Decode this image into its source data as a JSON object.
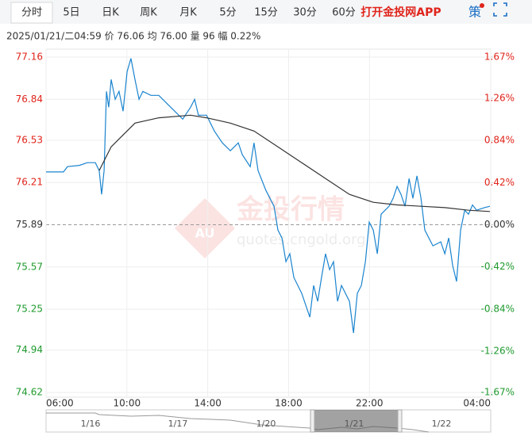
{
  "tabs": [
    "分时",
    "5日",
    "日K",
    "周K",
    "月K",
    "5分",
    "15分",
    "30分",
    "60分"
  ],
  "promo": "打开金投网APP",
  "strategy": "策",
  "info": "2025/01/21/二04:59  价 76.06  均 76.00  量 96  幅 0.22%",
  "watermark": {
    "title": "金投行情",
    "url": "quotes.cngold.org",
    "logo": "AU"
  },
  "navigator": {
    "labels": [
      "1/16",
      "1/17",
      "1/20",
      "1/21",
      "1/22"
    ]
  },
  "chart_data": {
    "type": "line",
    "grid": true,
    "baseline": 75.89,
    "xlim": [
      6,
      28
    ],
    "xticks": [
      {
        "value": 6,
        "label": "06:00"
      },
      {
        "value": 10,
        "label": "10:00"
      },
      {
        "value": 14,
        "label": "14:00"
      },
      {
        "value": 18,
        "label": "18:00"
      },
      {
        "value": 22,
        "label": "22:00"
      },
      {
        "value": 28,
        "label": "04:00"
      }
    ],
    "ylim": [
      74.62,
      77.16
    ],
    "yticks": [
      77.16,
      76.84,
      76.53,
      76.21,
      75.89,
      75.57,
      75.25,
      74.94,
      74.62
    ],
    "y2lim": [
      -1.67,
      1.67
    ],
    "y2ticks": [
      {
        "value": 1.67,
        "label": "1.67%"
      },
      {
        "value": 1.26,
        "label": "1.26%"
      },
      {
        "value": 0.84,
        "label": "0.84%"
      },
      {
        "value": 0.42,
        "label": "0.42%"
      },
      {
        "value": 0,
        "label": "0.00%"
      },
      {
        "value": -0.42,
        "label": "-0.42%"
      },
      {
        "value": -0.84,
        "label": "-0.84%"
      },
      {
        "value": -1.26,
        "label": "-1.26%"
      },
      {
        "value": -1.67,
        "label": "-1.67%"
      }
    ],
    "series": [
      {
        "color": "#1a84cf",
        "x": [
          6.0,
          6.86,
          7.06,
          7.65,
          8.04,
          8.44,
          8.63,
          8.75,
          8.87,
          8.99,
          9.1,
          9.22,
          9.42,
          9.61,
          9.81,
          10.01,
          10.2,
          10.4,
          10.6,
          10.79,
          11.19,
          11.58,
          11.97,
          12.37,
          12.76,
          13.15,
          13.35,
          13.54,
          13.94,
          14.33,
          14.72,
          15.12,
          15.51,
          15.71,
          16.1,
          16.29,
          16.49,
          16.88,
          17.28,
          17.47,
          17.67,
          17.87,
          18.06,
          18.26,
          18.65,
          19.05,
          19.24,
          19.44,
          19.63,
          19.83,
          20.03,
          20.22,
          20.42,
          20.62,
          21.01,
          21.21,
          21.4,
          21.6,
          21.8,
          21.99,
          22.19,
          22.39,
          22.58,
          22.97,
          23.17,
          23.37,
          23.56,
          23.76,
          23.96,
          24.15,
          24.35,
          24.55,
          24.74,
          24.94,
          25.14,
          25.53,
          25.73,
          25.92,
          26.12,
          26.31,
          26.51,
          26.71,
          26.9,
          27.1,
          27.3,
          27.69,
          27.96
        ],
        "values": [
          76.29,
          76.29,
          76.33,
          76.34,
          76.36,
          76.36,
          76.3,
          76.12,
          76.3,
          76.9,
          76.78,
          76.99,
          76.84,
          76.9,
          76.75,
          77.05,
          77.15,
          76.99,
          76.84,
          76.9,
          76.87,
          76.87,
          76.81,
          76.75,
          76.69,
          76.78,
          76.84,
          76.72,
          76.72,
          76.6,
          76.51,
          76.45,
          76.51,
          76.42,
          76.33,
          76.51,
          76.3,
          76.15,
          76.03,
          75.85,
          75.79,
          75.61,
          75.67,
          75.49,
          75.37,
          75.19,
          75.43,
          75.31,
          75.49,
          75.67,
          75.55,
          75.61,
          75.31,
          75.43,
          75.31,
          75.07,
          75.37,
          75.43,
          75.61,
          75.91,
          75.85,
          75.67,
          75.97,
          76.03,
          76.09,
          76.18,
          76.12,
          76.03,
          76.24,
          76.09,
          76.26,
          76.09,
          75.85,
          75.79,
          75.73,
          75.76,
          75.67,
          75.79,
          75.58,
          75.46,
          75.85,
          76.0,
          75.97,
          76.04,
          76.0,
          76.02,
          76.03
        ]
      },
      {
        "color": "#333333",
        "x": [
          8.63,
          9.22,
          9.61,
          10.4,
          11.58,
          13.15,
          13.94,
          15.12,
          16.29,
          17.47,
          18.65,
          19.83,
          21.01,
          22.19,
          23.37,
          24.55,
          25.73,
          26.9,
          27.96
        ],
        "values": [
          76.3,
          76.48,
          76.54,
          76.66,
          76.7,
          76.72,
          76.7,
          76.66,
          76.6,
          76.48,
          76.36,
          76.24,
          76.12,
          76.06,
          76.04,
          76.03,
          76.02,
          76.0,
          75.99
        ]
      }
    ]
  }
}
